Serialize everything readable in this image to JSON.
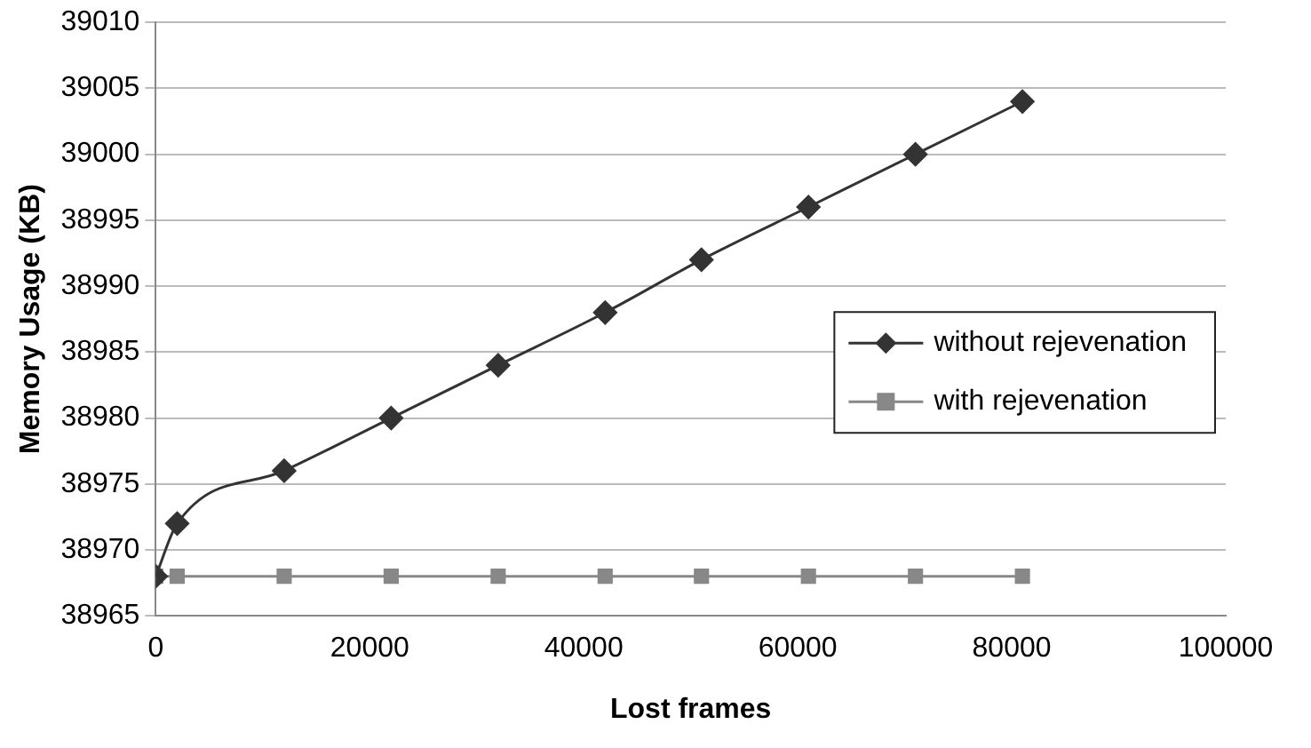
{
  "chart_data": {
    "type": "line",
    "xlabel": "Lost frames",
    "ylabel": "Memory Usage (KB)",
    "x": [
      0,
      2000,
      12000,
      22000,
      32000,
      42000,
      51000,
      61000,
      71000,
      81000
    ],
    "series": [
      {
        "name": "without rejevenation",
        "color": "#333333",
        "marker": "diamond",
        "values": [
          38968,
          38972,
          38976,
          38980,
          38984,
          38988,
          38992,
          38996,
          39000,
          39004
        ]
      },
      {
        "name": "with rejevenation",
        "color": "#888888",
        "marker": "square",
        "values": [
          38968,
          38968,
          38968,
          38968,
          38968,
          38968,
          38968,
          38968,
          38968,
          38968
        ]
      }
    ],
    "xlim": [
      0,
      100000
    ],
    "xticks": [
      0,
      20000,
      40000,
      60000,
      80000,
      100000
    ],
    "ylim": [
      38965,
      39010
    ],
    "yticks": [
      38965,
      38970,
      38975,
      38980,
      38985,
      38990,
      38995,
      39000,
      39005,
      39010
    ],
    "grid": "y",
    "legend": "right"
  }
}
